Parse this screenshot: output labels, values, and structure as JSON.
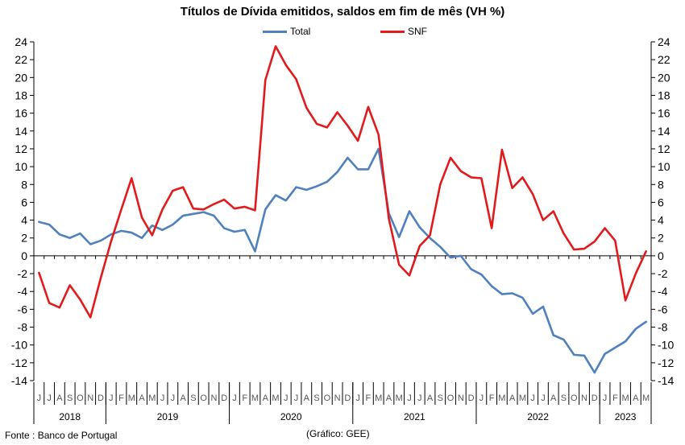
{
  "chart_data": {
    "type": "line",
    "title": "Títulos de Dívida emitidos, saldos em fim de mês  (VH %)",
    "xlabel": "",
    "ylabel": "",
    "ylim": [
      -14,
      24
    ],
    "y_ticks": [
      -14,
      -12,
      -10,
      -8,
      -6,
      -4,
      -2,
      0,
      2,
      4,
      6,
      8,
      10,
      12,
      14,
      16,
      18,
      20,
      22,
      24
    ],
    "grid": false,
    "legend": "top-center",
    "x_start": "2018-06",
    "x_end": "2023-05",
    "month_letters": [
      "J",
      "J",
      "A",
      "S",
      "O",
      "N",
      "D",
      "J",
      "F",
      "M",
      "A",
      "M",
      "J",
      "J",
      "A",
      "S",
      "O",
      "N",
      "D",
      "J",
      "F",
      "M",
      "A",
      "M",
      "J",
      "J",
      "A",
      "S",
      "O",
      "N",
      "D",
      "J",
      "F",
      "M",
      "A",
      "M",
      "J",
      "J",
      "A",
      "S",
      "O",
      "N",
      "D",
      "J",
      "F",
      "M",
      "A",
      "M",
      "J",
      "J",
      "A",
      "S",
      "O",
      "N",
      "D",
      "J",
      "F",
      "M",
      "A",
      "M"
    ],
    "years": [
      {
        "label": "2018",
        "start": 0,
        "end": 6
      },
      {
        "label": "2019",
        "start": 7,
        "end": 18
      },
      {
        "label": "2020",
        "start": 19,
        "end": 30
      },
      {
        "label": "2021",
        "start": 31,
        "end": 42
      },
      {
        "label": "2022",
        "start": 43,
        "end": 54
      },
      {
        "label": "2023",
        "start": 55,
        "end": 59
      }
    ],
    "series": [
      {
        "name": "Total",
        "color": "#4f81bd",
        "values": [
          3.8,
          3.5,
          2.4,
          2.0,
          2.5,
          1.3,
          1.7,
          2.4,
          2.8,
          2.6,
          2.0,
          3.4,
          2.9,
          3.5,
          4.5,
          4.7,
          4.9,
          4.5,
          3.1,
          2.7,
          2.9,
          0.5,
          5.2,
          6.8,
          6.2,
          7.7,
          7.4,
          7.8,
          8.3,
          9.4,
          11.0,
          9.7,
          9.7,
          12.0,
          4.8,
          2.1,
          5.0,
          3.2,
          2.0,
          1.0,
          -0.2,
          0.0,
          -1.5,
          -2.1,
          -3.4,
          -4.3,
          -4.2,
          -4.7,
          -6.5,
          -5.7,
          -8.9,
          -9.4,
          -11.1,
          -11.2,
          -13.1,
          -11.0,
          -10.3,
          -9.6,
          -8.2,
          -7.4
        ]
      },
      {
        "name": "SNF",
        "color": "#e31a1c",
        "values": [
          -1.9,
          -5.3,
          -5.8,
          -3.3,
          -4.9,
          -6.9,
          -2.5,
          1.6,
          5.2,
          8.7,
          4.3,
          2.3,
          5.2,
          7.3,
          7.7,
          5.3,
          5.2,
          5.8,
          6.3,
          5.3,
          5.5,
          5.1,
          19.7,
          23.5,
          21.4,
          19.8,
          16.6,
          14.8,
          14.4,
          16.1,
          14.6,
          12.9,
          16.7,
          13.6,
          4.2,
          -1.0,
          -2.2,
          1.1,
          2.3,
          8.0,
          11.0,
          9.5,
          8.8,
          8.7,
          3.1,
          11.9,
          7.6,
          8.8,
          6.9,
          4.0,
          5.0,
          2.5,
          0.7,
          0.8,
          1.6,
          3.1,
          1.7,
          -5.0,
          -2.0,
          0.5
        ]
      }
    ],
    "legend_entries": [
      "Total",
      "SNF"
    ]
  },
  "footer": {
    "source": "Fonte : Banco de Portugal",
    "credit": "(Gráfico: GEE)"
  }
}
